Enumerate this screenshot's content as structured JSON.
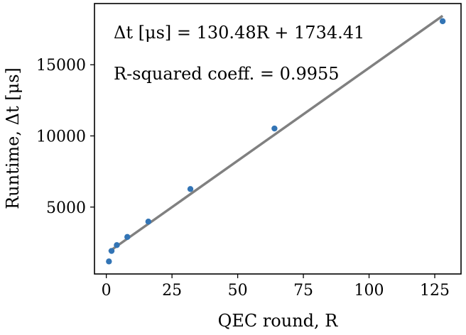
{
  "chart_data": {
    "type": "scatter",
    "xlabel": "QEC round, R",
    "ylabel": "Runtime, Δt [μs]",
    "xlim": [
      -4.5,
      135
    ],
    "ylim": [
      300,
      19300
    ],
    "x_ticks": [
      0,
      25,
      50,
      75,
      100,
      125
    ],
    "x_tick_labels": [
      "0",
      "25",
      "50",
      "75",
      "100",
      "125"
    ],
    "y_ticks": [
      5000,
      10000,
      15000
    ],
    "y_tick_labels": [
      "5000",
      "10000",
      "15000"
    ],
    "grid": false,
    "series": [
      {
        "type": "scatter",
        "color": "#3274b5",
        "x": [
          1,
          2,
          4,
          8,
          16,
          32,
          64,
          128
        ],
        "y": [
          1180,
          1920,
          2330,
          2900,
          3980,
          6270,
          10520,
          18060
        ]
      },
      {
        "type": "line",
        "color": "#808080",
        "slope": 130.48,
        "intercept": 1734.41,
        "x_range": [
          1,
          128
        ]
      }
    ],
    "annotations": [
      "Δt [μs] = 130.48R + 1734.41",
      "R-squared coeff. = 0.9955"
    ]
  }
}
